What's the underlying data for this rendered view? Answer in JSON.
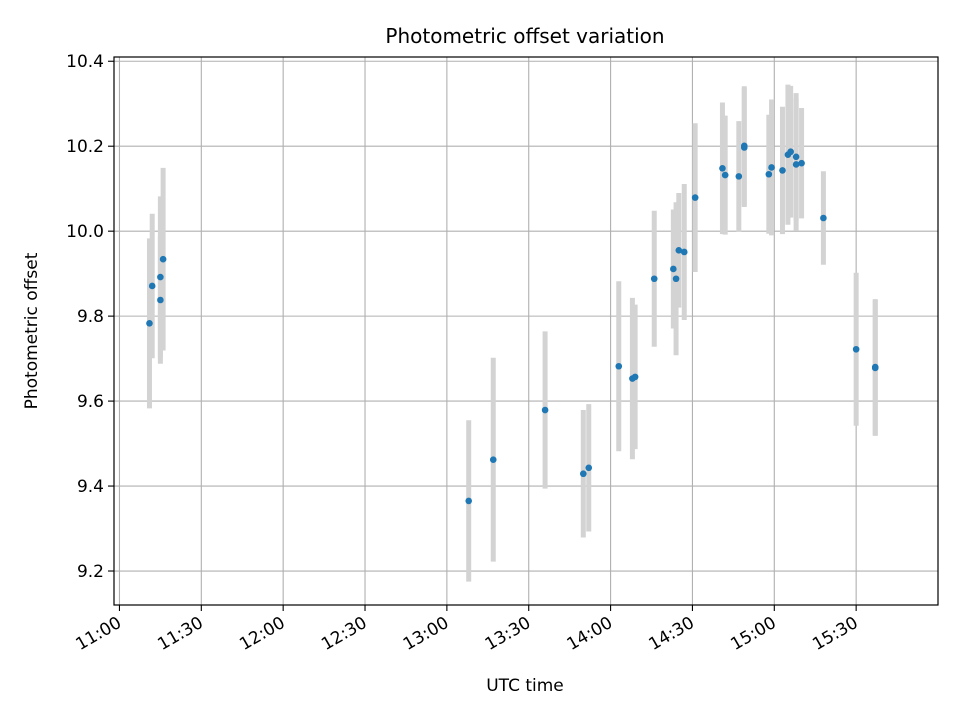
{
  "chart_data": {
    "type": "scatter",
    "title": "Photometric offset variation",
    "xlabel": "UTC time",
    "ylabel": "Photometric offset",
    "x_ticks": [
      "11:00",
      "11:30",
      "12:00",
      "12:30",
      "13:00",
      "13:30",
      "14:00",
      "14:30",
      "15:00",
      "15:30"
    ],
    "y_ticks": [
      "9.2",
      "9.4",
      "9.6",
      "9.8",
      "10.0",
      "10.2",
      "10.4"
    ],
    "xlim": [
      "10:58",
      "16:00"
    ],
    "ylim": [
      9.12,
      10.41
    ],
    "grid": true,
    "colors": {
      "point": "#1f77b4",
      "errorbar": "#d3d3d3",
      "grid": "#b0b0b0"
    },
    "points": [
      {
        "x": "11:11",
        "y": 9.783,
        "err": 0.2
      },
      {
        "x": "11:12",
        "y": 9.871,
        "err": 0.17
      },
      {
        "x": "11:15",
        "y": 9.892,
        "err": 0.19
      },
      {
        "x": "11:15",
        "y": 9.838,
        "err": 0.15
      },
      {
        "x": "11:16",
        "y": 9.934,
        "err": 0.215
      },
      {
        "x": "13:08",
        "y": 9.365,
        "err": 0.19
      },
      {
        "x": "13:17",
        "y": 9.462,
        "err": 0.24
      },
      {
        "x": "13:36",
        "y": 9.579,
        "err": 0.185
      },
      {
        "x": "13:50",
        "y": 9.429,
        "err": 0.15
      },
      {
        "x": "13:52",
        "y": 9.443,
        "err": 0.15
      },
      {
        "x": "14:03",
        "y": 9.682,
        "err": 0.2
      },
      {
        "x": "14:08",
        "y": 9.653,
        "err": 0.19
      },
      {
        "x": "14:09",
        "y": 9.657,
        "err": 0.17
      },
      {
        "x": "14:16",
        "y": 9.888,
        "err": 0.16
      },
      {
        "x": "14:23",
        "y": 9.911,
        "err": 0.14
      },
      {
        "x": "14:24",
        "y": 9.888,
        "err": 0.18
      },
      {
        "x": "14:25",
        "y": 9.955,
        "err": 0.135
      },
      {
        "x": "14:27",
        "y": 9.951,
        "err": 0.16
      },
      {
        "x": "14:31",
        "y": 10.079,
        "err": 0.175
      },
      {
        "x": "14:41",
        "y": 10.148,
        "err": 0.155
      },
      {
        "x": "14:42",
        "y": 10.132,
        "err": 0.14
      },
      {
        "x": "14:47",
        "y": 10.129,
        "err": 0.13
      },
      {
        "x": "14:49",
        "y": 10.197,
        "err": 0.14
      },
      {
        "x": "14:49",
        "y": 10.201,
        "err": 0.14
      },
      {
        "x": "14:58",
        "y": 10.134,
        "err": 0.14
      },
      {
        "x": "14:59",
        "y": 10.15,
        "err": 0.16
      },
      {
        "x": "15:03",
        "y": 10.143,
        "err": 0.15
      },
      {
        "x": "15:05",
        "y": 10.18,
        "err": 0.165
      },
      {
        "x": "15:06",
        "y": 10.187,
        "err": 0.155
      },
      {
        "x": "15:08",
        "y": 10.175,
        "err": 0.15
      },
      {
        "x": "15:08",
        "y": 10.157,
        "err": 0.155
      },
      {
        "x": "15:10",
        "y": 10.16,
        "err": 0.13
      },
      {
        "x": "15:18",
        "y": 10.031,
        "err": 0.11
      },
      {
        "x": "15:30",
        "y": 9.722,
        "err": 0.18
      },
      {
        "x": "15:37",
        "y": 9.68,
        "err": 0.16
      },
      {
        "x": "15:37",
        "y": 9.678,
        "err": 0.16
      }
    ]
  }
}
